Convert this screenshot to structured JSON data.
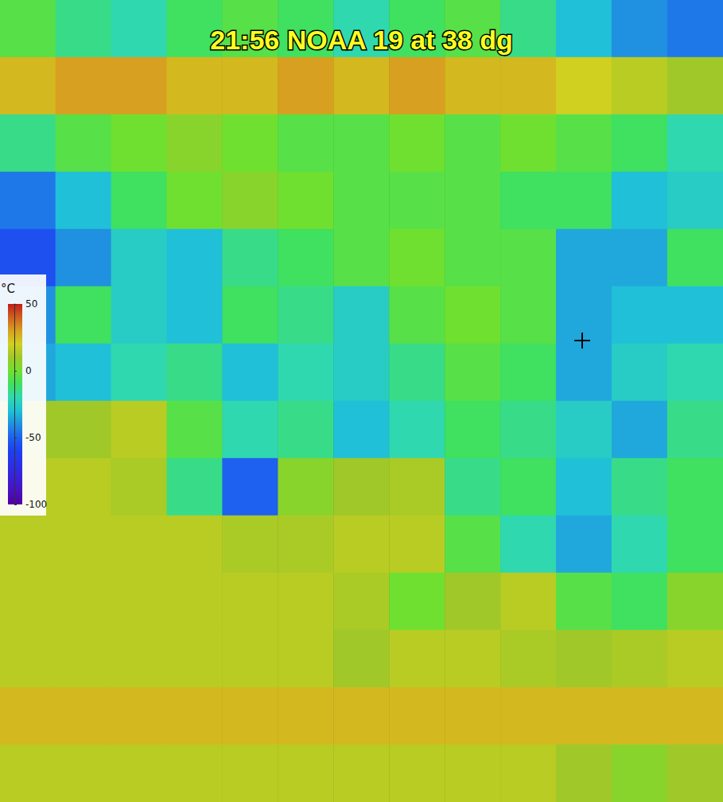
{
  "chart_data": {
    "type": "heatmap",
    "title": "21:56 NOAA 19 at 38 dg",
    "tick_labels": false,
    "cells": [
      [
        -5,
        -15,
        -20,
        -10,
        -5,
        -10,
        -20,
        -10,
        -5,
        -15,
        -30,
        -40,
        -45
      ],
      [
        25,
        30,
        30,
        25,
        25,
        30,
        25,
        30,
        25,
        25,
        20,
        15,
        10
      ],
      [
        -15,
        -5,
        0,
        5,
        0,
        -5,
        -5,
        0,
        -5,
        0,
        -5,
        -10,
        -20
      ],
      [
        -45,
        -30,
        -10,
        0,
        5,
        0,
        -5,
        -5,
        -5,
        -10,
        -10,
        -30,
        -25
      ],
      [
        -55,
        -40,
        -25,
        -30,
        -15,
        -10,
        -5,
        0,
        -5,
        -5,
        -35,
        -35,
        -10
      ],
      [
        -40,
        -10,
        -25,
        -30,
        -10,
        -15,
        -25,
        -5,
        0,
        -5,
        -35,
        -30,
        -30
      ],
      [
        -35,
        -30,
        -20,
        -15,
        -30,
        -20,
        -25,
        -15,
        -5,
        -10,
        -35,
        -25,
        -20
      ],
      [
        10,
        10,
        15,
        -5,
        -20,
        -15,
        -30,
        -20,
        -10,
        -15,
        -25,
        -35,
        -15
      ],
      [
        15,
        15,
        12,
        -15,
        -50,
        5,
        10,
        12,
        -15,
        -10,
        -30,
        -15,
        -10
      ],
      [
        15,
        15,
        15,
        15,
        12,
        12,
        15,
        15,
        -5,
        -20,
        -35,
        -20,
        -10
      ],
      [
        15,
        15,
        15,
        15,
        15,
        15,
        12,
        0,
        10,
        15,
        -5,
        -10,
        5
      ],
      [
        15,
        15,
        15,
        15,
        15,
        15,
        10,
        15,
        15,
        12,
        10,
        12,
        15
      ],
      [
        25,
        25,
        25,
        25,
        25,
        25,
        25,
        25,
        25,
        25,
        25,
        25,
        25
      ],
      [
        15,
        15,
        15,
        15,
        15,
        15,
        15,
        15,
        15,
        15,
        10,
        5,
        10
      ]
    ],
    "colorbar": {
      "label": "°C",
      "range": [
        -100,
        50
      ],
      "ticks": [
        50,
        0,
        -50,
        -100
      ]
    }
  }
}
